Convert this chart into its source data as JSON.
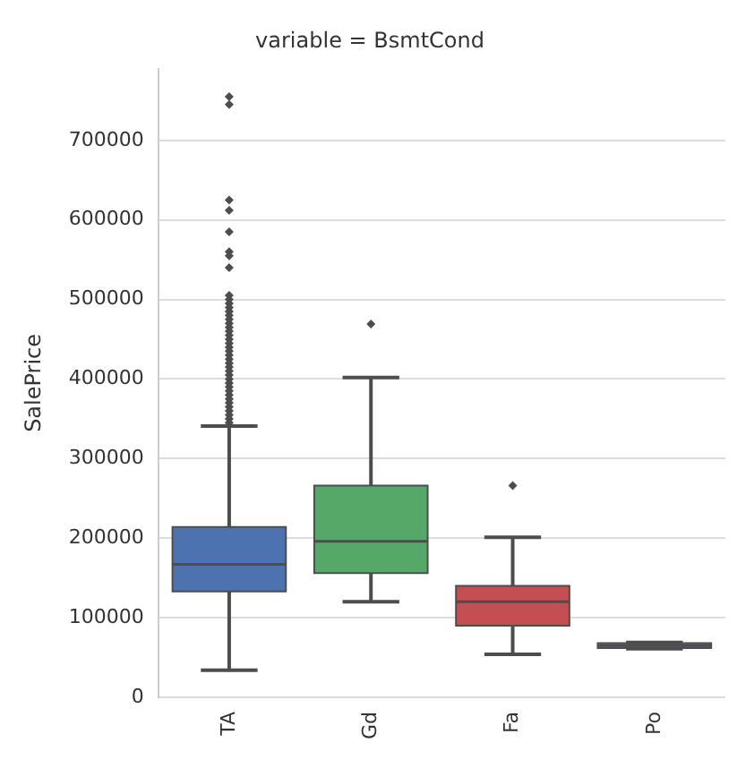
{
  "chart_data": {
    "type": "box",
    "title": "variable = BsmtCond",
    "ylabel": "SalePrice",
    "categories": [
      "TA",
      "Gd",
      "Fa",
      "Po"
    ],
    "colors": [
      "#4c72b0",
      "#55a868",
      "#c44e52",
      "#8172b2"
    ],
    "boxes": [
      {
        "low": 34000,
        "q1": 133000,
        "median": 167000,
        "q3": 214000,
        "high": 341000,
        "outliers": [
          345000,
          350000,
          355000,
          360000,
          365000,
          370000,
          375000,
          380000,
          385000,
          390000,
          395000,
          400000,
          405000,
          410000,
          415000,
          420000,
          425000,
          430000,
          435000,
          440000,
          445000,
          450000,
          455000,
          460000,
          465000,
          470000,
          475000,
          480000,
          485000,
          490000,
          495000,
          500000,
          505000,
          540000,
          555000,
          560000,
          585000,
          612000,
          625000,
          745000,
          755000
        ]
      },
      {
        "low": 120000,
        "q1": 156000,
        "median": 196000,
        "q3": 266000,
        "high": 402000,
        "outliers": [
          469000
        ]
      },
      {
        "low": 54000,
        "q1": 90000,
        "median": 120000,
        "q3": 140000,
        "high": 201000,
        "outliers": [
          266000
        ]
      },
      {
        "low": 61000,
        "q1": 62000,
        "median": 65000,
        "q3": 68000,
        "high": 69000
      }
    ],
    "ylim": [
      0,
      790000
    ],
    "yticks": [
      0,
      100000,
      200000,
      300000,
      400000,
      500000,
      600000,
      700000
    ],
    "grid": "y"
  }
}
